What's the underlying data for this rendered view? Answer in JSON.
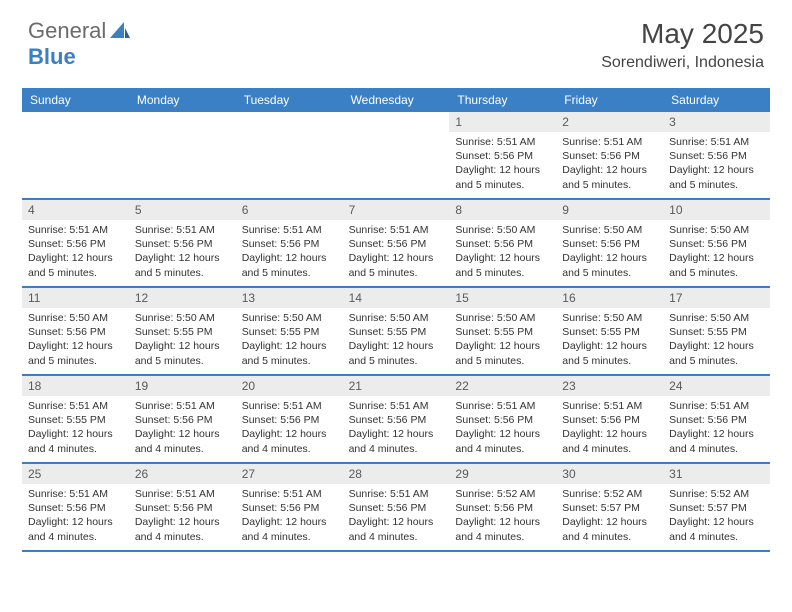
{
  "logo": {
    "part1": "General",
    "part2": "Blue"
  },
  "title": "May 2025",
  "location": "Sorendiweri, Indonesia",
  "colors": {
    "header_bg": "#3b7fc4",
    "header_fg": "#ffffff",
    "daynum_bg": "#ececec",
    "daynum_fg": "#5a5a5a",
    "week_border": "#3b7fc4",
    "body_fg": "#333333",
    "logo_gray": "#6b6b6b",
    "logo_blue": "#3b7fc4",
    "page_bg": "#ffffff"
  },
  "typography": {
    "title_fontsize": 28,
    "location_fontsize": 16,
    "dow_fontsize": 12,
    "daynum_fontsize": 12,
    "body_fontsize": 10.5
  },
  "days_of_week": [
    "Sunday",
    "Monday",
    "Tuesday",
    "Wednesday",
    "Thursday",
    "Friday",
    "Saturday"
  ],
  "weeks": [
    [
      {
        "n": "",
        "sr": "",
        "ss": "",
        "dl": ""
      },
      {
        "n": "",
        "sr": "",
        "ss": "",
        "dl": ""
      },
      {
        "n": "",
        "sr": "",
        "ss": "",
        "dl": ""
      },
      {
        "n": "",
        "sr": "",
        "ss": "",
        "dl": ""
      },
      {
        "n": "1",
        "sr": "5:51 AM",
        "ss": "5:56 PM",
        "dl": "12 hours and 5 minutes."
      },
      {
        "n": "2",
        "sr": "5:51 AM",
        "ss": "5:56 PM",
        "dl": "12 hours and 5 minutes."
      },
      {
        "n": "3",
        "sr": "5:51 AM",
        "ss": "5:56 PM",
        "dl": "12 hours and 5 minutes."
      }
    ],
    [
      {
        "n": "4",
        "sr": "5:51 AM",
        "ss": "5:56 PM",
        "dl": "12 hours and 5 minutes."
      },
      {
        "n": "5",
        "sr": "5:51 AM",
        "ss": "5:56 PM",
        "dl": "12 hours and 5 minutes."
      },
      {
        "n": "6",
        "sr": "5:51 AM",
        "ss": "5:56 PM",
        "dl": "12 hours and 5 minutes."
      },
      {
        "n": "7",
        "sr": "5:51 AM",
        "ss": "5:56 PM",
        "dl": "12 hours and 5 minutes."
      },
      {
        "n": "8",
        "sr": "5:50 AM",
        "ss": "5:56 PM",
        "dl": "12 hours and 5 minutes."
      },
      {
        "n": "9",
        "sr": "5:50 AM",
        "ss": "5:56 PM",
        "dl": "12 hours and 5 minutes."
      },
      {
        "n": "10",
        "sr": "5:50 AM",
        "ss": "5:56 PM",
        "dl": "12 hours and 5 minutes."
      }
    ],
    [
      {
        "n": "11",
        "sr": "5:50 AM",
        "ss": "5:56 PM",
        "dl": "12 hours and 5 minutes."
      },
      {
        "n": "12",
        "sr": "5:50 AM",
        "ss": "5:55 PM",
        "dl": "12 hours and 5 minutes."
      },
      {
        "n": "13",
        "sr": "5:50 AM",
        "ss": "5:55 PM",
        "dl": "12 hours and 5 minutes."
      },
      {
        "n": "14",
        "sr": "5:50 AM",
        "ss": "5:55 PM",
        "dl": "12 hours and 5 minutes."
      },
      {
        "n": "15",
        "sr": "5:50 AM",
        "ss": "5:55 PM",
        "dl": "12 hours and 5 minutes."
      },
      {
        "n": "16",
        "sr": "5:50 AM",
        "ss": "5:55 PM",
        "dl": "12 hours and 5 minutes."
      },
      {
        "n": "17",
        "sr": "5:50 AM",
        "ss": "5:55 PM",
        "dl": "12 hours and 5 minutes."
      }
    ],
    [
      {
        "n": "18",
        "sr": "5:51 AM",
        "ss": "5:55 PM",
        "dl": "12 hours and 4 minutes."
      },
      {
        "n": "19",
        "sr": "5:51 AM",
        "ss": "5:56 PM",
        "dl": "12 hours and 4 minutes."
      },
      {
        "n": "20",
        "sr": "5:51 AM",
        "ss": "5:56 PM",
        "dl": "12 hours and 4 minutes."
      },
      {
        "n": "21",
        "sr": "5:51 AM",
        "ss": "5:56 PM",
        "dl": "12 hours and 4 minutes."
      },
      {
        "n": "22",
        "sr": "5:51 AM",
        "ss": "5:56 PM",
        "dl": "12 hours and 4 minutes."
      },
      {
        "n": "23",
        "sr": "5:51 AM",
        "ss": "5:56 PM",
        "dl": "12 hours and 4 minutes."
      },
      {
        "n": "24",
        "sr": "5:51 AM",
        "ss": "5:56 PM",
        "dl": "12 hours and 4 minutes."
      }
    ],
    [
      {
        "n": "25",
        "sr": "5:51 AM",
        "ss": "5:56 PM",
        "dl": "12 hours and 4 minutes."
      },
      {
        "n": "26",
        "sr": "5:51 AM",
        "ss": "5:56 PM",
        "dl": "12 hours and 4 minutes."
      },
      {
        "n": "27",
        "sr": "5:51 AM",
        "ss": "5:56 PM",
        "dl": "12 hours and 4 minutes."
      },
      {
        "n": "28",
        "sr": "5:51 AM",
        "ss": "5:56 PM",
        "dl": "12 hours and 4 minutes."
      },
      {
        "n": "29",
        "sr": "5:52 AM",
        "ss": "5:56 PM",
        "dl": "12 hours and 4 minutes."
      },
      {
        "n": "30",
        "sr": "5:52 AM",
        "ss": "5:57 PM",
        "dl": "12 hours and 4 minutes."
      },
      {
        "n": "31",
        "sr": "5:52 AM",
        "ss": "5:57 PM",
        "dl": "12 hours and 4 minutes."
      }
    ]
  ],
  "labels": {
    "sunrise": "Sunrise: ",
    "sunset": "Sunset: ",
    "daylight": "Daylight: "
  }
}
